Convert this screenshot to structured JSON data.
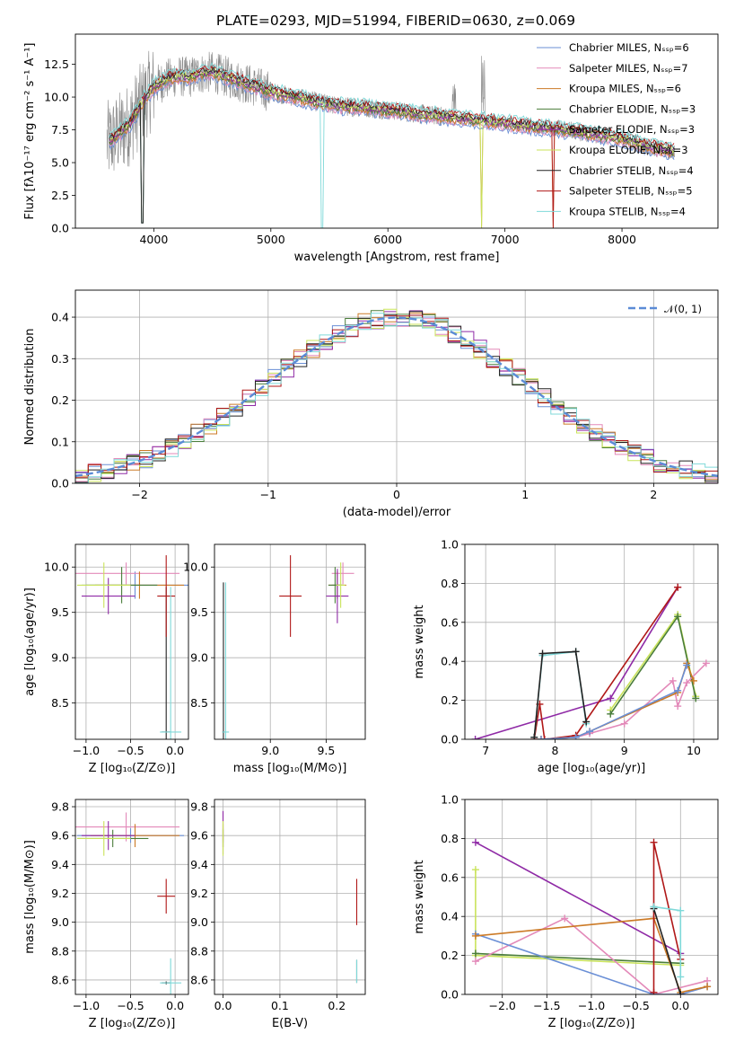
{
  "title": "PLATE=0293, MJD=51994, FIBERID=0630, z=0.069",
  "colors": {
    "Chabrier MILES": "#6a8fd6",
    "Salpeter MILES": "#e389b9",
    "Kroupa MILES": "#cc7a26",
    "Chabrier ELODIE": "#4a7d3a",
    "Salpeter ELODIE": "#8f2aa6",
    "Kroupa ELODIE": "#c9e35a",
    "Chabrier STELIB": "#222222",
    "Salpeter STELIB": "#b01818",
    "Kroupa STELIB": "#7fd9d9",
    "data": "#888888",
    "normal": "#5b8bd6"
  },
  "chart_data": [
    {
      "id": "spectrum",
      "type": "line",
      "xlabel": "wavelength [Angstrom, rest frame]",
      "ylabel": "Flux [fλ10⁻¹⁷ erg cm⁻² s⁻¹ A⁻¹]",
      "xlim": [
        3330,
        8820
      ],
      "ylim": [
        0,
        14.8
      ],
      "xticks": [
        4000,
        5000,
        6000,
        7000,
        8000
      ],
      "yticks": [
        0.0,
        2.5,
        5.0,
        7.5,
        10.0,
        12.5
      ],
      "legend_position": "top-right",
      "legend": [
        "Chabrier MILES, N_SSP=6",
        "Salpeter MILES, N_SSP=7",
        "Kroupa MILES, N_SSP=6",
        "Chabrier ELODIE, N_SSP=3",
        "Salpeter ELODIE, N_SSP=3",
        "Kroupa ELODIE, N_SSP=3",
        "Chabrier STELIB, N_SSP=4",
        "Salpeter STELIB, N_SSP=5",
        "Kroupa STELIB, N_SSP=4"
      ],
      "continuum": {
        "x": [
          3600,
          3700,
          3800,
          3900,
          4000,
          4100,
          4200,
          4300,
          4400,
          4500,
          4600,
          4800,
          5000,
          5200,
          5400,
          5600,
          5800,
          6000,
          6200,
          6400,
          6600,
          6800,
          7000,
          7200,
          7400,
          7600,
          7800,
          8000,
          8200,
          8400
        ],
        "y": [
          6.5,
          7.2,
          8.0,
          9.6,
          10.8,
          11.3,
          11.6,
          11.5,
          11.8,
          11.9,
          11.6,
          11.0,
          10.4,
          10.0,
          9.6,
          9.3,
          9.2,
          9.0,
          8.8,
          8.6,
          8.4,
          8.2,
          8.0,
          7.8,
          7.6,
          7.4,
          7.1,
          6.8,
          6.3,
          5.9
        ]
      }
    },
    {
      "id": "residuals",
      "type": "bar",
      "xlabel": "(data-model)/error",
      "ylabel": "Normed distribution",
      "xlim": [
        -2.5,
        2.5
      ],
      "ylim": [
        0,
        0.465
      ],
      "xticks": [
        -2,
        -1,
        0,
        1,
        2
      ],
      "yticks": [
        0.0,
        0.1,
        0.2,
        0.3,
        0.4
      ],
      "legend": [
        "𝒩(0, 1)"
      ],
      "legend_position": "top-right",
      "grid": true,
      "bin_width": 0.1
    },
    {
      "id": "age-vs-Z",
      "type": "scatter",
      "xlabel": "Z [log₁₀(Z/Z⊙)]",
      "ylabel": "age  [log₁₀(age/yr)]",
      "xlim": [
        -1.12,
        0.15
      ],
      "ylim": [
        8.1,
        10.25
      ],
      "xticks": [
        -1.0,
        -0.5,
        0.0
      ],
      "yticks": [
        8.5,
        9.0,
        9.5,
        10.0
      ],
      "grid": true,
      "points": [
        {
          "model": "Chabrier MILES",
          "x": -0.45,
          "y": 9.8,
          "xerr": 0.6,
          "yerr": 0.15
        },
        {
          "model": "Salpeter MILES",
          "x": -0.55,
          "y": 9.93,
          "xerr": 0.6,
          "yerr": 0.12
        },
        {
          "model": "Kroupa MILES",
          "x": -0.4,
          "y": 9.8,
          "xerr": 0.5,
          "yerr": 0.15
        },
        {
          "model": "Chabrier ELODIE",
          "x": -0.6,
          "y": 9.8,
          "xerr": 0.4,
          "yerr": 0.2
        },
        {
          "model": "Salpeter ELODIE",
          "x": -0.75,
          "y": 9.68,
          "xerr": 0.3,
          "yerr": 0.2
        },
        {
          "model": "Kroupa ELODIE",
          "x": -0.8,
          "y": 9.8,
          "xerr": 0.3,
          "yerr": 0.25
        },
        {
          "model": "Chabrier STELIB",
          "x": -0.1,
          "y": 8.18,
          "xerr": 0.05,
          "yerr": 1.6
        },
        {
          "model": "Salpeter STELIB",
          "x": -0.1,
          "y": 9.68,
          "xerr": 0.1,
          "yerr": 0.45
        },
        {
          "model": "Kroupa STELIB",
          "x": -0.05,
          "y": 8.18,
          "xerr": 0.12,
          "yerr": 1.6
        }
      ]
    },
    {
      "id": "age-vs-mass",
      "type": "scatter",
      "xlabel": "mass [log₁₀(M/M⊙)]",
      "ylabel": "",
      "xlim": [
        8.5,
        9.85
      ],
      "ylim": [
        8.1,
        10.25
      ],
      "xticks": [
        9.0,
        9.5
      ],
      "yticks": [
        8.5,
        9.0,
        9.5,
        10.0
      ],
      "grid": true,
      "points": [
        {
          "model": "Chabrier MILES",
          "x": 9.6,
          "y": 9.8,
          "xerr": 0.05,
          "yerr": 0.15
        },
        {
          "model": "Salpeter MILES",
          "x": 9.65,
          "y": 9.93,
          "xerr": 0.1,
          "yerr": 0.12
        },
        {
          "model": "Kroupa MILES",
          "x": 9.6,
          "y": 9.8,
          "xerr": 0.08,
          "yerr": 0.15
        },
        {
          "model": "Chabrier ELODIE",
          "x": 9.58,
          "y": 9.8,
          "xerr": 0.06,
          "yerr": 0.2
        },
        {
          "model": "Salpeter ELODIE",
          "x": 9.6,
          "y": 9.68,
          "xerr": 0.1,
          "yerr": 0.3
        },
        {
          "model": "Kroupa ELODIE",
          "x": 9.63,
          "y": 9.8,
          "xerr": 0.04,
          "yerr": 0.25
        },
        {
          "model": "Chabrier STELIB",
          "x": 8.58,
          "y": 8.18,
          "xerr": 0.01,
          "yerr": 1.65
        },
        {
          "model": "Salpeter STELIB",
          "x": 9.18,
          "y": 9.68,
          "xerr": 0.1,
          "yerr": 0.45
        },
        {
          "model": "Kroupa STELIB",
          "x": 8.6,
          "y": 8.18,
          "xerr": 0.03,
          "yerr": 1.65
        }
      ]
    },
    {
      "id": "weight-vs-age",
      "type": "line",
      "xlabel": "age  [log₁₀(age/yr)]",
      "ylabel": "mass weight",
      "xlim": [
        6.7,
        10.35
      ],
      "ylim": [
        0,
        1.0
      ],
      "xticks": [
        7,
        8,
        9,
        10
      ],
      "yticks": [
        0.0,
        0.2,
        0.4,
        0.6,
        0.8,
        1.0
      ],
      "grid": true,
      "series": [
        {
          "model": "Salpeter ELODIE",
          "x": [
            6.85,
            8.8,
            9.77
          ],
          "y": [
            0.0,
            0.21,
            0.78
          ]
        },
        {
          "model": "Salpeter STELIB",
          "x": [
            7.7,
            7.78,
            7.85,
            8.3,
            9.77
          ],
          "y": [
            0.0,
            0.18,
            0.0,
            0.02,
            0.78
          ]
        },
        {
          "model": "Kroupa STELIB",
          "x": [
            7.7,
            7.82,
            8.3,
            8.45
          ],
          "y": [
            0.01,
            0.43,
            0.45,
            0.08
          ]
        },
        {
          "model": "Chabrier STELIB",
          "x": [
            7.7,
            7.82,
            8.3,
            8.45
          ],
          "y": [
            0.01,
            0.44,
            0.45,
            0.09
          ]
        },
        {
          "model": "Kroupa ELODIE",
          "x": [
            8.8,
            9.77,
            10.03
          ],
          "y": [
            0.15,
            0.64,
            0.22
          ]
        },
        {
          "model": "Chabrier ELODIE",
          "x": [
            8.8,
            9.77,
            10.03
          ],
          "y": [
            0.13,
            0.63,
            0.21
          ]
        },
        {
          "model": "Salpeter MILES",
          "x": [
            7.8,
            8.3,
            8.5,
            9.0,
            9.7,
            9.77,
            9.9,
            10.18
          ],
          "y": [
            0.0,
            0.01,
            0.03,
            0.08,
            0.3,
            0.17,
            0.29,
            0.39
          ]
        },
        {
          "model": "Kroupa MILES",
          "x": [
            7.8,
            8.3,
            8.5,
            9.77,
            9.9,
            10.0
          ],
          "y": [
            0.0,
            0.01,
            0.04,
            0.24,
            0.39,
            0.3
          ]
        },
        {
          "model": "Chabrier MILES",
          "x": [
            7.8,
            8.3,
            8.5,
            9.77,
            9.9
          ],
          "y": [
            0.0,
            0.01,
            0.04,
            0.25,
            0.38
          ]
        }
      ]
    },
    {
      "id": "mass-vs-Z",
      "type": "scatter",
      "xlabel": "Z [log₁₀(Z/Z⊙)]",
      "ylabel": "mass [log₁₀(M/M⊙)]",
      "xlim": [
        -1.12,
        0.15
      ],
      "ylim": [
        8.5,
        9.85
      ],
      "xticks": [
        -1.0,
        -0.5,
        0.0
      ],
      "yticks": [
        8.6,
        8.8,
        9.0,
        9.2,
        9.4,
        9.6,
        9.8
      ],
      "grid": true,
      "points": [
        {
          "model": "Chabrier MILES",
          "x": -0.5,
          "y": 9.6,
          "xerr": 0.6,
          "yerr": 0.05
        },
        {
          "model": "Salpeter MILES",
          "x": -0.55,
          "y": 9.66,
          "xerr": 0.6,
          "yerr": 0.1
        },
        {
          "model": "Kroupa MILES",
          "x": -0.45,
          "y": 9.6,
          "xerr": 0.5,
          "yerr": 0.08
        },
        {
          "model": "Chabrier ELODIE",
          "x": -0.7,
          "y": 9.58,
          "xerr": 0.4,
          "yerr": 0.06
        },
        {
          "model": "Salpeter ELODIE",
          "x": -0.75,
          "y": 9.6,
          "xerr": 0.3,
          "yerr": 0.1
        },
        {
          "model": "Kroupa ELODIE",
          "x": -0.8,
          "y": 9.58,
          "xerr": 0.3,
          "yerr": 0.12
        },
        {
          "model": "Chabrier STELIB",
          "x": -0.1,
          "y": 8.58,
          "xerr": 0.05,
          "yerr": 0.01
        },
        {
          "model": "Salpeter STELIB",
          "x": -0.1,
          "y": 9.18,
          "xerr": 0.1,
          "yerr": 0.12
        },
        {
          "model": "Kroupa STELIB",
          "x": -0.05,
          "y": 8.58,
          "xerr": 0.12,
          "yerr": 0.17
        }
      ]
    },
    {
      "id": "mass-vs-ebv",
      "type": "scatter",
      "xlabel": "E(B-V)",
      "ylabel": "",
      "xlim": [
        -0.015,
        0.25
      ],
      "ylim": [
        8.5,
        9.85
      ],
      "xticks": [
        0.0,
        0.1,
        0.2
      ],
      "yticks": [
        8.6,
        8.8,
        9.0,
        9.2,
        9.4,
        9.6,
        9.8
      ],
      "grid": true,
      "points": [
        {
          "model": "Chabrier MILES",
          "x": 0.0,
          "y": 9.6,
          "yerr": 0.05
        },
        {
          "model": "Salpeter MILES",
          "x": 0.0,
          "y": 9.66,
          "yerr": 0.1
        },
        {
          "model": "Kroupa MILES",
          "x": 0.0,
          "y": 9.6,
          "yerr": 0.08
        },
        {
          "model": "Chabrier ELODIE",
          "x": 0.0,
          "y": 9.58,
          "yerr": 0.06
        },
        {
          "model": "Salpeter ELODIE",
          "x": 0.0,
          "y": 9.62,
          "yerr": 0.15
        },
        {
          "model": "Kroupa ELODIE",
          "x": 0.0,
          "y": 9.58,
          "yerr": 0.12
        },
        {
          "model": "Chabrier STELIB",
          "x": 0.235,
          "y": 8.66,
          "yerr": 0.08
        },
        {
          "model": "Salpeter STELIB",
          "x": 0.235,
          "y": 9.14,
          "yerr": 0.16
        },
        {
          "model": "Kroupa STELIB",
          "x": 0.235,
          "y": 8.66,
          "yerr": 0.08
        }
      ]
    },
    {
      "id": "weight-vs-Z",
      "type": "line",
      "xlabel": "Z [log₁₀(Z/Z⊙)]",
      "ylabel": "mass weight",
      "xlim": [
        -2.42,
        0.42
      ],
      "ylim": [
        0,
        1.0
      ],
      "xticks": [
        -2.0,
        -1.5,
        -1.0,
        -0.5,
        0.0
      ],
      "yticks": [
        0.0,
        0.2,
        0.4,
        0.6,
        0.8,
        1.0
      ],
      "grid": true,
      "series": [
        {
          "model": "Salpeter ELODIE",
          "x": [
            -2.3,
            0.0
          ],
          "y": [
            0.78,
            0.21
          ]
        },
        {
          "model": "Kroupa ELODIE",
          "x": [
            -2.3,
            -2.3,
            0.0
          ],
          "y": [
            0.64,
            0.2,
            0.15
          ]
        },
        {
          "model": "Chabrier ELODIE",
          "x": [
            -2.3,
            0.0
          ],
          "y": [
            0.21,
            0.16
          ]
        },
        {
          "model": "Salpeter MILES",
          "x": [
            -2.3,
            -1.3,
            -0.3,
            0.3
          ],
          "y": [
            0.17,
            0.39,
            0.0,
            0.07
          ]
        },
        {
          "model": "Chabrier MILES",
          "x": [
            -2.3,
            -0.3,
            0.0,
            0.3
          ],
          "y": [
            0.31,
            0.0,
            0.0,
            0.04
          ]
        },
        {
          "model": "Kroupa MILES",
          "x": [
            -2.3,
            -0.3,
            0.0,
            0.3
          ],
          "y": [
            0.3,
            0.39,
            0.01,
            0.04
          ]
        },
        {
          "model": "Salpeter STELIB",
          "x": [
            -0.3,
            -0.3,
            0.0
          ],
          "y": [
            0.01,
            0.78,
            0.18
          ]
        },
        {
          "model": "Chabrier STELIB",
          "x": [
            -0.3,
            0.0
          ],
          "y": [
            0.44,
            0.0
          ]
        },
        {
          "model": "Kroupa STELIB",
          "x": [
            -0.3,
            0.0,
            0.0
          ],
          "y": [
            0.45,
            0.43,
            0.09
          ]
        }
      ]
    }
  ]
}
